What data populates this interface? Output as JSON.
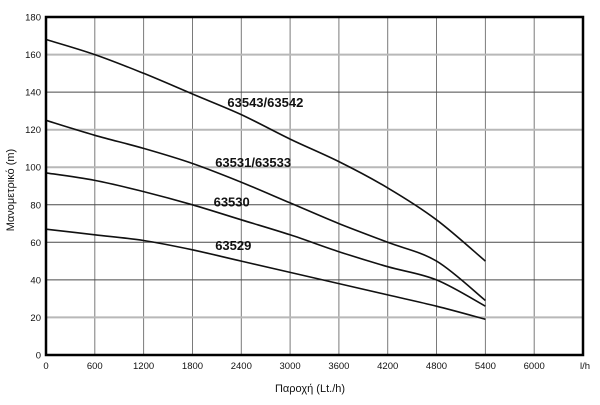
{
  "chart_data": {
    "type": "line",
    "title": "",
    "xlabel": "Παροχή (Lt./h)",
    "ylabel": "Μανομετρικό  (m)",
    "x_unit_suffix": "l/h",
    "xlim": [
      0,
      6600
    ],
    "ylim": [
      0,
      180
    ],
    "x_ticks": [
      0,
      600,
      1200,
      1800,
      2400,
      3000,
      3600,
      4200,
      4800,
      5400,
      6000
    ],
    "y_ticks": [
      0,
      20,
      40,
      60,
      80,
      100,
      120,
      140,
      160,
      180
    ],
    "grid": true,
    "legend_position": "labels-on-curves",
    "h_grid_light": [
      20,
      100,
      120,
      160
    ],
    "h_grid_dark": [
      40,
      60,
      80,
      140
    ],
    "x": [
      0,
      600,
      1200,
      1800,
      2400,
      3000,
      3600,
      4200,
      4800,
      5400
    ],
    "series": [
      {
        "name": "63543/63542",
        "values": [
          168,
          160,
          150,
          139,
          128,
          115,
          103,
          89,
          72,
          50
        ],
        "label_anchor": {
          "q": 2230,
          "h": 132
        }
      },
      {
        "name": "63531/63533",
        "values": [
          125,
          117,
          110,
          102,
          92,
          81,
          70,
          60,
          50,
          29
        ],
        "label_anchor": {
          "q": 2080,
          "h": 100
        }
      },
      {
        "name": "63530",
        "values": [
          97,
          93,
          87,
          80,
          72,
          64,
          55,
          47,
          40,
          26
        ],
        "label_anchor": {
          "q": 2060,
          "h": 79
        }
      },
      {
        "name": "63529",
        "values": [
          67,
          64,
          61,
          56,
          50,
          44,
          38,
          32,
          26,
          19
        ],
        "label_anchor": {
          "q": 2080,
          "h": 56
        }
      }
    ],
    "colors": {
      "background": "#ffffff",
      "curve": "#111111",
      "border": "#000000",
      "grid_vertical": "#7a7a7a",
      "grid_horizontal_dark": "#4a4a4a",
      "grid_horizontal_light": "#b8b8b8",
      "text": "#111111"
    }
  }
}
